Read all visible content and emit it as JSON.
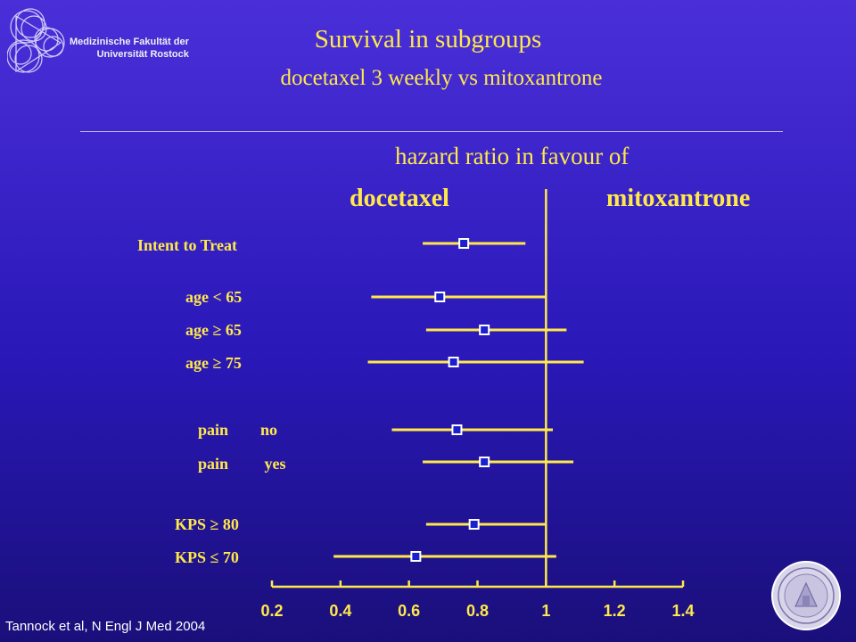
{
  "header": {
    "title": "Survival in subgroups",
    "subtitle": "docetaxel 3 weekly vs mitoxantrone",
    "institution_line1": "Medizinische Fakultät der",
    "institution_line2": "Universität Rostock"
  },
  "citation": "Tannock et al, N Engl J Med 2004",
  "colors": {
    "accent": "#ffe94a",
    "marker_fill": "#1a20d0",
    "marker_stroke": "#ffffff",
    "background": "#3a22c8"
  },
  "chart_data": {
    "type": "forest",
    "title": "hazard ratio in favour of",
    "left_label": "docetaxel",
    "right_label": "mitoxantrone",
    "reference_line": 1,
    "xlim": [
      0.2,
      1.4
    ],
    "x_ticks": [
      0.2,
      0.4,
      0.6,
      0.8,
      1,
      1.2,
      1.4
    ],
    "x_tick_labels": [
      "0.2",
      "0.4",
      "0.6",
      "0.8",
      "1",
      "1.2",
      "1.4"
    ],
    "rows": [
      {
        "label": "Intent to Treat",
        "hr": 0.76,
        "ci_low": 0.64,
        "ci_high": 0.94
      },
      {
        "label": "age < 65",
        "hr": 0.69,
        "ci_low": 0.49,
        "ci_high": 1.0
      },
      {
        "label": "age ≥ 65",
        "hr": 0.82,
        "ci_low": 0.65,
        "ci_high": 1.06
      },
      {
        "label": "age ≥ 75",
        "hr": 0.73,
        "ci_low": 0.48,
        "ci_high": 1.11
      },
      {
        "label": "pain        no",
        "hr": 0.74,
        "ci_low": 0.55,
        "ci_high": 1.02
      },
      {
        "label": "pain         yes",
        "hr": 0.82,
        "ci_low": 0.64,
        "ci_high": 1.08
      },
      {
        "label": "KPS ≥ 80",
        "hr": 0.79,
        "ci_low": 0.65,
        "ci_high": 1.0
      },
      {
        "label": "KPS ≤ 70",
        "hr": 0.62,
        "ci_low": 0.38,
        "ci_high": 1.03
      }
    ]
  }
}
